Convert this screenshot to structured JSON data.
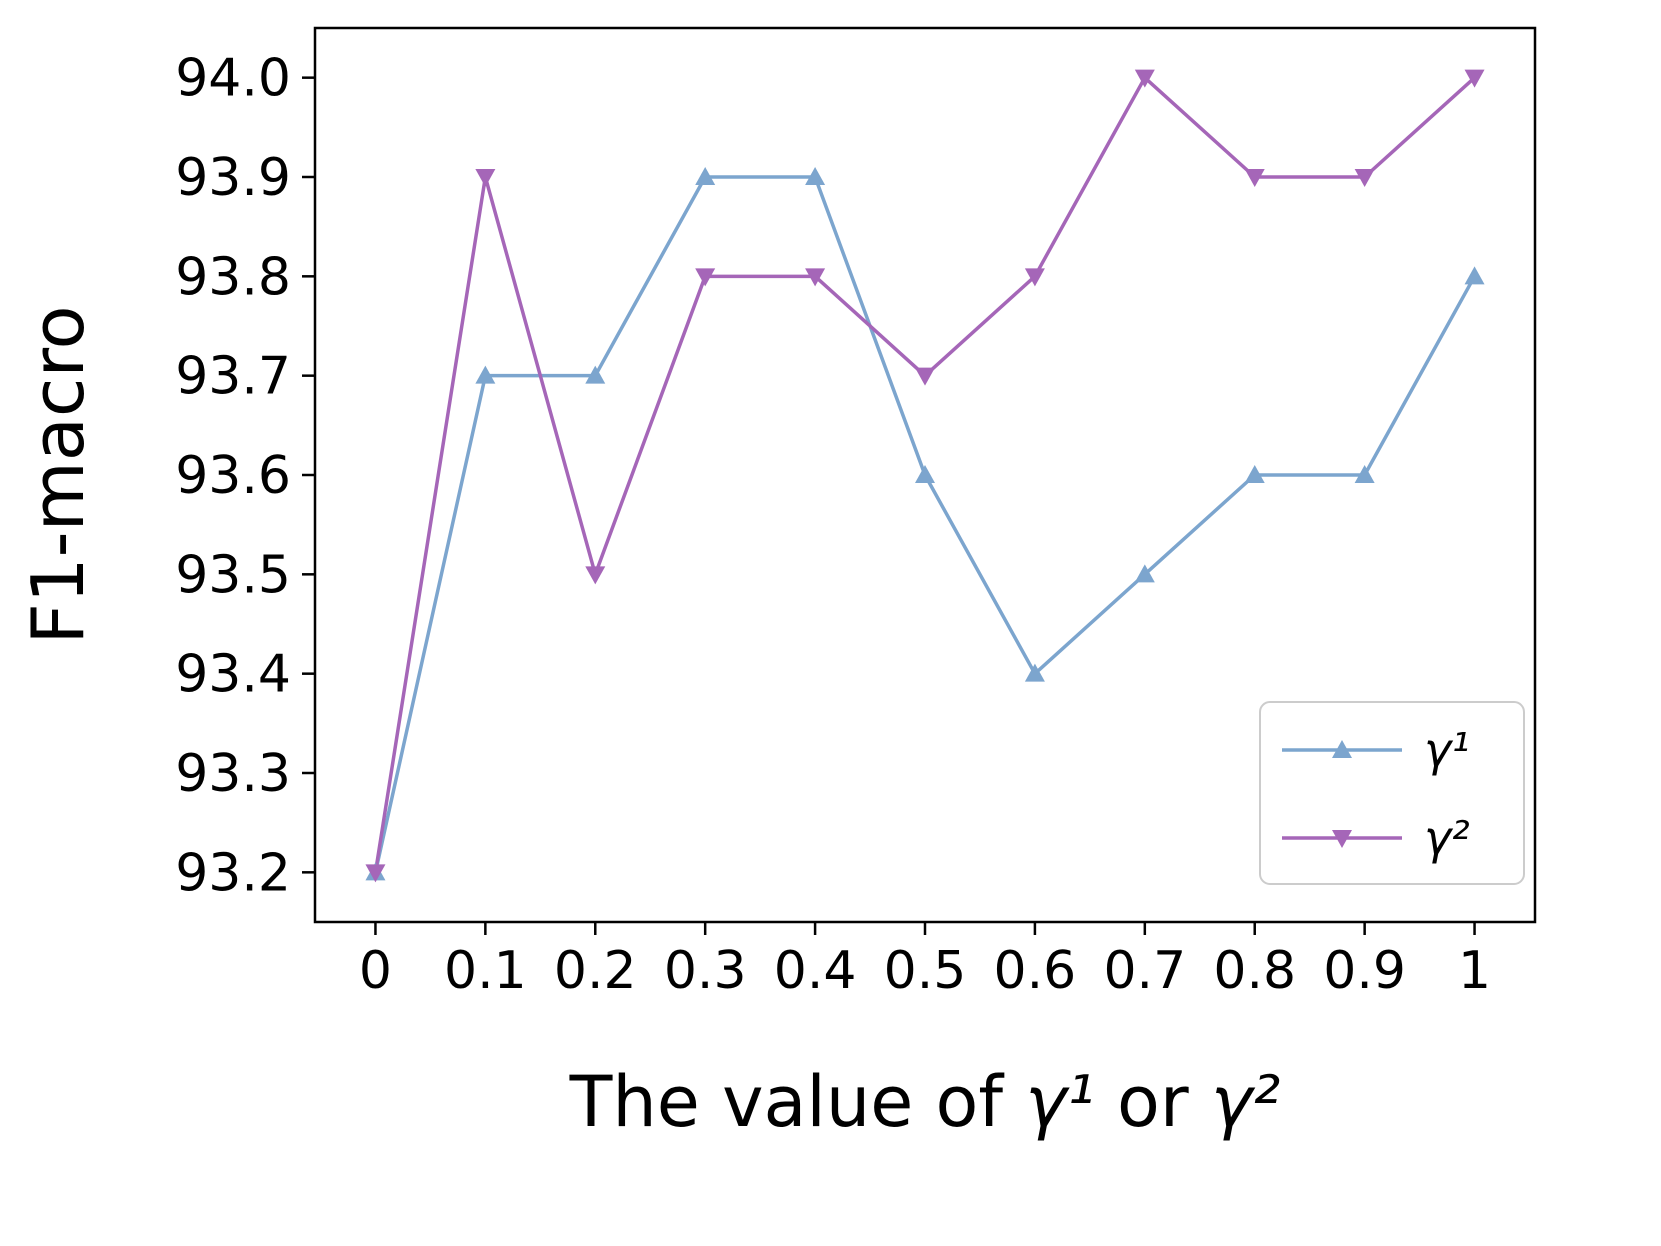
{
  "chart_data": {
    "type": "line",
    "title": "",
    "xlabel": "The value of γ¹ or γ²",
    "xlabel_parts": [
      {
        "text": "The value of ",
        "style": "normal"
      },
      {
        "text": "γ¹",
        "style": "italic"
      },
      {
        "text": " or ",
        "style": "normal"
      },
      {
        "text": "γ²",
        "style": "italic"
      }
    ],
    "ylabel": "F1-macro",
    "x": [
      0,
      0.1,
      0.2,
      0.3,
      0.4,
      0.5,
      0.6,
      0.7,
      0.8,
      0.9,
      1
    ],
    "xticks": [
      "0",
      "0.1",
      "0.2",
      "0.3",
      "0.4",
      "0.5",
      "0.6",
      "0.7",
      "0.8",
      "0.9",
      "1"
    ],
    "yticks": [
      "93.2",
      "93.3",
      "93.4",
      "93.5",
      "93.6",
      "93.7",
      "93.8",
      "93.9",
      "94.0"
    ],
    "xlim": [
      -0.055,
      1.055
    ],
    "ylim": [
      93.15,
      94.05
    ],
    "grid": false,
    "legend_position": "lower right",
    "series": [
      {
        "name": "γ¹",
        "color": "#7CA5CE",
        "marker": "triangle-up",
        "values": [
          93.2,
          93.7,
          93.7,
          93.9,
          93.9,
          93.6,
          93.4,
          93.5,
          93.6,
          93.6,
          93.8
        ]
      },
      {
        "name": "γ²",
        "color": "#A566B8",
        "marker": "triangle-down",
        "values": [
          93.2,
          93.9,
          93.5,
          93.8,
          93.8,
          93.7,
          93.8,
          94.0,
          93.9,
          93.9,
          94.0
        ]
      }
    ]
  }
}
